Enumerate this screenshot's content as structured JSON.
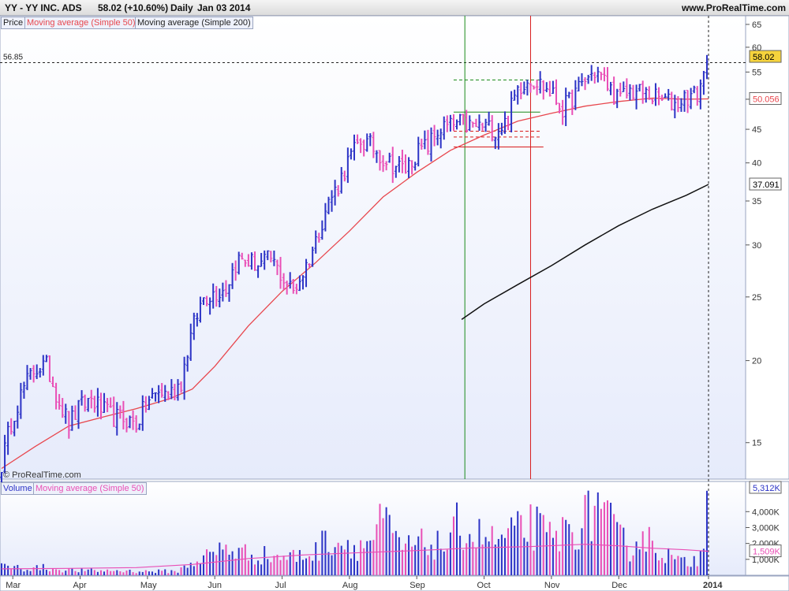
{
  "header": {
    "symbol": "YY - YY INC. ADS",
    "quote": "58.02 (+10.60%)",
    "period": "Daily",
    "date": "Jan 03 2014",
    "site": "www.ProRealTime.com"
  },
  "legend": {
    "price": "Price",
    "ma50": "Moving average (Simple 50)",
    "ma200": "Moving average (Simple 200)",
    "volume": "Volume",
    "vol_ma50": "Moving average (Simple 50)"
  },
  "watermark": "© ProRealTime.com",
  "colors": {
    "up": "#2c33c6",
    "down": "#e94fb6",
    "ma50": "#e8474e",
    "ma200": "#111111",
    "vol_ma": "#e94fb6",
    "panel_bg_top": "#ffffff",
    "panel_bg_bottom": "#e6ebfb",
    "green_line": "#1a8a1a",
    "red_line": "#d81c1c"
  },
  "chart_data": [
    {
      "type": "line",
      "title": "YY - YY INC. ADS",
      "scale": "log",
      "ylim": [
        13.2,
        67
      ],
      "y_ticks": [
        15,
        20,
        25,
        30,
        35,
        40,
        45,
        50,
        55,
        60,
        65
      ],
      "x_ticks": [
        "Mar",
        "Apr",
        "May",
        "Jun",
        "Jul",
        "Aug",
        "Sep",
        "Oct",
        "Nov",
        "Dec",
        "2014"
      ],
      "grid": false,
      "legend_position": "top-left",
      "series": [
        {
          "name": "Price",
          "type": "ohlc",
          "values": [
            [
              0,
              13.9
            ],
            [
              7,
              16.5
            ],
            [
              14,
              18.2
            ],
            [
              21,
              19.5
            ],
            [
              28,
              19.6
            ],
            [
              35,
              17.6
            ],
            [
              42,
              16.0
            ],
            [
              49,
              17.0
            ],
            [
              56,
              17.5
            ],
            [
              63,
              16.8
            ],
            [
              70,
              16.4
            ],
            [
              77,
              16.3
            ],
            [
              84,
              16.0
            ],
            [
              91,
              17.3
            ],
            [
              98,
              17.9
            ],
            [
              105,
              17.8
            ],
            [
              112,
              18.6
            ],
            [
              119,
              22.3
            ],
            [
              126,
              25.0
            ],
            [
              133,
              25.4
            ],
            [
              140,
              25.8
            ],
            [
              147,
              28.5
            ],
            [
              154,
              28.3
            ],
            [
              161,
              28.0
            ],
            [
              168,
              28.6
            ],
            [
              175,
              26.8
            ],
            [
              182,
              25.5
            ],
            [
              189,
              27.5
            ],
            [
              196,
              30.4
            ],
            [
              203,
              34.5
            ],
            [
              210,
              37.0
            ],
            [
              217,
              40.6
            ],
            [
              224,
              43.2
            ],
            [
              231,
              42.4
            ],
            [
              238,
              40.7
            ],
            [
              245,
              39.7
            ],
            [
              252,
              39.1
            ],
            [
              259,
              41.5
            ],
            [
              266,
              42.5
            ],
            [
              273,
              45.0
            ],
            [
              280,
              45.5
            ],
            [
              287,
              46.0
            ],
            [
              294,
              45.4
            ],
            [
              301,
              45.5
            ],
            [
              308,
              44.8
            ],
            [
              315,
              46.2
            ],
            [
              322,
              52.0
            ],
            [
              329,
              54.0
            ],
            [
              336,
              52.8
            ],
            [
              343,
              51.0
            ],
            [
              350,
              48.3
            ],
            [
              357,
              50.6
            ],
            [
              364,
              53.5
            ],
            [
              371,
              55.2
            ],
            [
              378,
              52.5
            ],
            [
              385,
              49.8
            ],
            [
              392,
              51.5
            ],
            [
              399,
              51.2
            ],
            [
              406,
              50.5
            ],
            [
              413,
              49.8
            ],
            [
              420,
              49.2
            ],
            [
              427,
              50.5
            ],
            [
              434,
              50.8
            ],
            [
              441,
              58.02
            ]
          ]
        },
        {
          "name": "Moving average (Simple 50)",
          "values": [
            [
              0,
              13.7
            ],
            [
              21,
              14.8
            ],
            [
              42,
              15.9
            ],
            [
              63,
              16.4
            ],
            [
              84,
              16.9
            ],
            [
              105,
              17.5
            ],
            [
              119,
              18.1
            ],
            [
              133,
              19.6
            ],
            [
              154,
              22.6
            ],
            [
              175,
              25.5
            ],
            [
              196,
              28.2
            ],
            [
              217,
              31.5
            ],
            [
              238,
              35.5
            ],
            [
              259,
              38.7
            ],
            [
              280,
              41.8
            ],
            [
              301,
              44.1
            ],
            [
              322,
              46.3
            ],
            [
              343,
              47.6
            ],
            [
              364,
              48.8
            ],
            [
              385,
              49.6
            ],
            [
              406,
              50.2
            ],
            [
              427,
              50.0
            ],
            [
              441,
              50.056
            ]
          ]
        },
        {
          "name": "Moving average (Simple 200)",
          "values": [
            [
              287,
              23.1
            ],
            [
              301,
              24.4
            ],
            [
              322,
              26.1
            ],
            [
              343,
              27.9
            ],
            [
              364,
              30.0
            ],
            [
              385,
              32.1
            ],
            [
              406,
              34.0
            ],
            [
              427,
              35.7
            ],
            [
              441,
              37.091
            ]
          ]
        }
      ],
      "annotations": {
        "level_line": 56.85,
        "last_price": 58.02,
        "ma50_last": 50.056,
        "ma200_last": 37.091,
        "vertical_lines": [
          {
            "x": 289,
            "color": "green"
          },
          {
            "x": 330,
            "color": "red"
          }
        ],
        "small_levels": [
          {
            "x1": 282,
            "x2": 336,
            "y": 53.5,
            "color": "green",
            "dashed": true
          },
          {
            "x1": 282,
            "x2": 336,
            "y": 47.8,
            "color": "green"
          },
          {
            "x1": 282,
            "x2": 336,
            "y": 44.7,
            "color": "red",
            "dashed": true
          },
          {
            "x1": 282,
            "x2": 336,
            "y": 43.8,
            "color": "red",
            "dashed": true
          },
          {
            "x1": 282,
            "x2": 338,
            "y": 42.3,
            "color": "red"
          }
        ]
      }
    },
    {
      "type": "bar",
      "title": "Volume",
      "y_ticks": [
        "1,000K",
        "2,000K",
        "3,000K",
        "4,000K"
      ],
      "y_tick_values": [
        1000,
        2000,
        3000,
        4000
      ],
      "ylim": [
        0,
        5600
      ],
      "last_volume_label": "5,312K",
      "ma_last_label": "1,509K",
      "series": [
        {
          "name": "Volume",
          "values": [
            [
              5,
              600
            ],
            [
              15,
              450
            ],
            [
              25,
              520
            ],
            [
              38,
              380
            ],
            [
              52,
              300
            ],
            [
              70,
              320
            ],
            [
              88,
              260
            ],
            [
              110,
              280
            ],
            [
              119,
              900
            ],
            [
              133,
              1500
            ],
            [
              140,
              1950
            ],
            [
              147,
              1600
            ],
            [
              154,
              1450
            ],
            [
              168,
              1300
            ],
            [
              182,
              1250
            ],
            [
              196,
              1550
            ],
            [
              203,
              2600
            ],
            [
              210,
              2300
            ],
            [
              224,
              1950
            ],
            [
              231,
              2450
            ],
            [
              238,
              3700
            ],
            [
              245,
              2350
            ],
            [
              252,
              1800
            ],
            [
              259,
              2100
            ],
            [
              266,
              2100
            ],
            [
              280,
              2000
            ],
            [
              284,
              3300
            ],
            [
              287,
              3450
            ],
            [
              294,
              2700
            ],
            [
              301,
              2700
            ],
            [
              308,
              2250
            ],
            [
              322,
              2900
            ],
            [
              330,
              3450
            ],
            [
              336,
              3000
            ],
            [
              343,
              2450
            ],
            [
              357,
              3250
            ],
            [
              371,
              4300
            ],
            [
              378,
              3600
            ],
            [
              385,
              2500
            ],
            [
              392,
              1850
            ],
            [
              399,
              2800
            ],
            [
              413,
              1550
            ],
            [
              420,
              1050
            ],
            [
              427,
              800
            ],
            [
              434,
              1150
            ],
            [
              441,
              5312
            ]
          ]
        },
        {
          "name": "Moving average (Simple 50)",
          "values": [
            [
              0,
              400
            ],
            [
              42,
              430
            ],
            [
              84,
              480
            ],
            [
              119,
              680
            ],
            [
              154,
              1050
            ],
            [
              189,
              1280
            ],
            [
              224,
              1420
            ],
            [
              259,
              1550
            ],
            [
              294,
              1720
            ],
            [
              329,
              1800
            ],
            [
              364,
              1950
            ],
            [
              385,
              1850
            ],
            [
              406,
              1700
            ],
            [
              427,
              1600
            ],
            [
              441,
              1509
            ]
          ]
        }
      ]
    }
  ]
}
